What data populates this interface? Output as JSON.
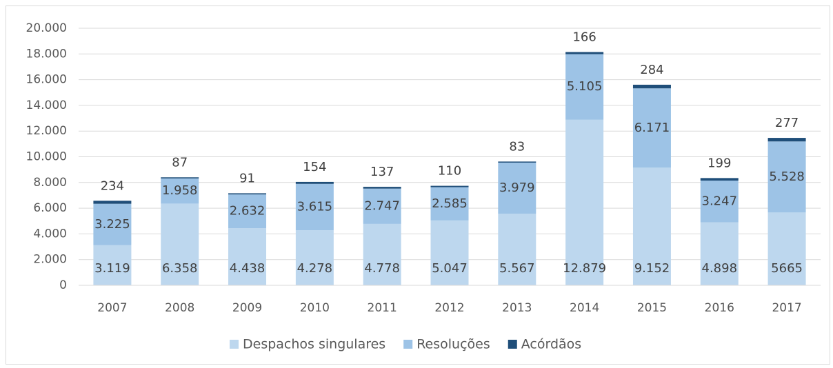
{
  "chart_data": {
    "type": "stacked_bar",
    "categories": [
      "2007",
      "2008",
      "2009",
      "2010",
      "2011",
      "2012",
      "2013",
      "2014",
      "2015",
      "2016",
      "2017"
    ],
    "series": [
      {
        "name": "Despachos singulares",
        "color": "#bdd7ee",
        "values": [
          3119,
          6358,
          4438,
          4278,
          4778,
          5047,
          5567,
          12879,
          9152,
          4898,
          5665
        ],
        "value_labels": [
          "3.119",
          "6.358",
          "4.438",
          "4.278",
          "4.778",
          "5.047",
          "5.567",
          "12.879",
          "9.152",
          "4.898",
          "5665"
        ]
      },
      {
        "name": "Resoluções",
        "color": "#9dc3e6",
        "values": [
          3225,
          1958,
          2632,
          3615,
          2747,
          2585,
          3979,
          5105,
          6171,
          3247,
          5528
        ],
        "value_labels": [
          "3.225",
          "1.958",
          "2.632",
          "3.615",
          "2.747",
          "2.585",
          "3.979",
          "5.105",
          "6.171",
          "3.247",
          "5.528"
        ]
      },
      {
        "name": "Acórdãos",
        "color": "#1f4e79",
        "values": [
          234,
          87,
          91,
          154,
          137,
          110,
          83,
          166,
          284,
          199,
          277
        ]
      }
    ],
    "ylim": [
      0,
      20000
    ],
    "yticks": [
      0,
      {
        "value": 2000,
        "label": "2.000"
      },
      {
        "value": 4000,
        "label": "4.000"
      },
      {
        "value": 6000,
        "label": "6.000"
      },
      {
        "value": 8000,
        "label": "8.000"
      },
      {
        "value": 10000,
        "label": "10.000"
      },
      {
        "value": 12000,
        "label": "12.000"
      },
      {
        "value": 14000,
        "label": "14.000"
      },
      {
        "value": 16000,
        "label": "16.000"
      },
      {
        "value": 18000,
        "label": "18.000"
      },
      {
        "value": 20000,
        "label": "20.000"
      }
    ],
    "grid": true,
    "legend": "bottom"
  }
}
